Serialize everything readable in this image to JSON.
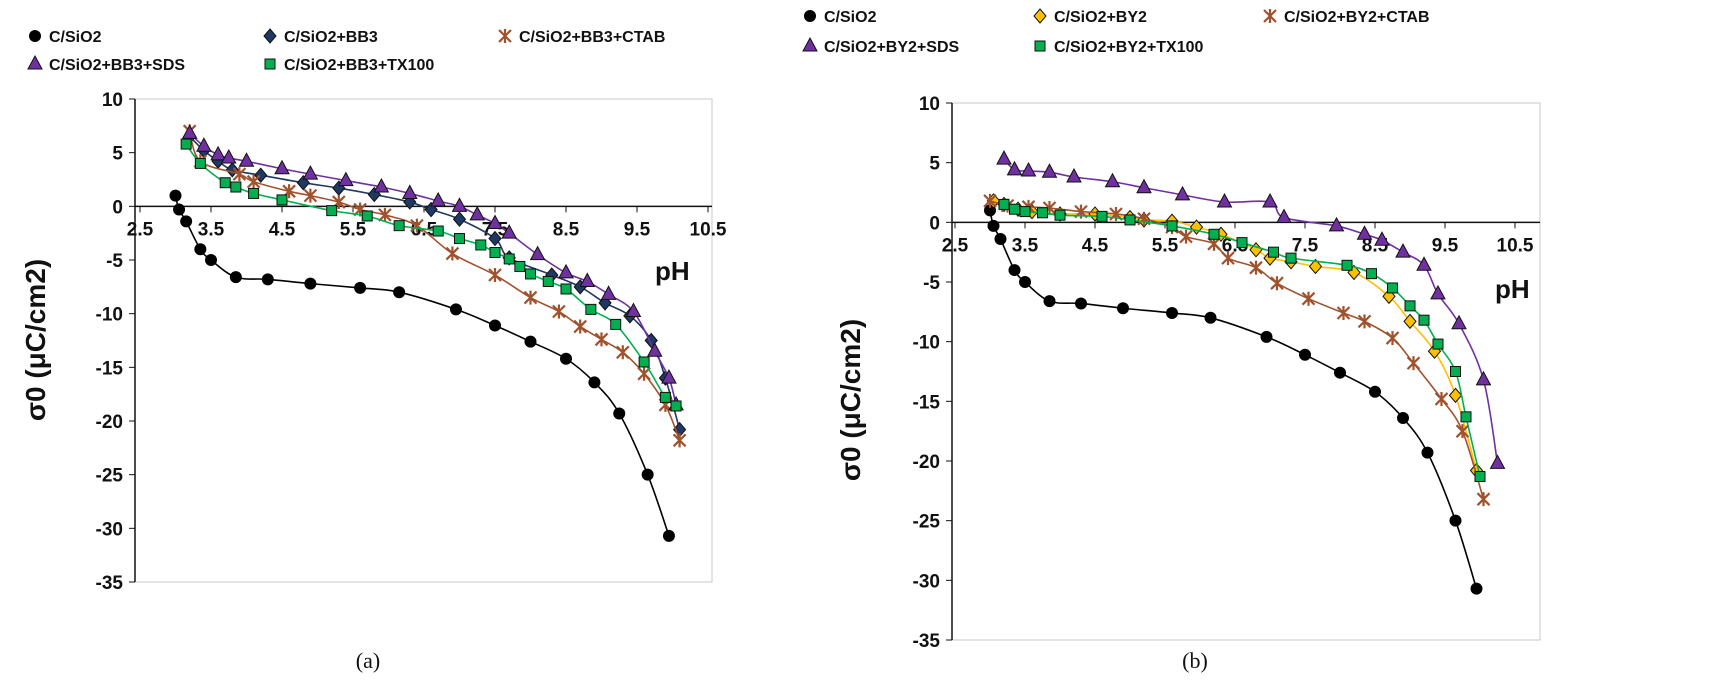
{
  "colors": {
    "C/SiO2": "#000000",
    "BB3": "#1f3864",
    "CTAB": "#a0522d",
    "SDS": "#7030a0",
    "TX100": "#00b050",
    "BY2": "#ffc000"
  },
  "chart_data": [
    {
      "type": "line",
      "panel_caption": "(a)",
      "xlabel": "pH",
      "ylabel": "σ0 (μC/cm2)",
      "xlim": [
        2.5,
        10.5
      ],
      "ylim": [
        -35,
        10
      ],
      "xticks": [
        "2.5",
        "3.5",
        "4.5",
        "5.5",
        "6.5",
        "7.5",
        "8.5",
        "9.5",
        "10.5"
      ],
      "yticks": [
        "10",
        "5",
        "0",
        "-5",
        "-10",
        "-15",
        "-20",
        "-25",
        "-30",
        "-35"
      ],
      "grid": false,
      "legend": "top",
      "series": [
        {
          "name": "C/SiO2",
          "marker": "circle",
          "color": "#000000",
          "x": [
            3.0,
            3.05,
            3.15,
            3.35,
            3.5,
            3.85,
            4.3,
            4.9,
            5.6,
            6.15,
            6.95,
            7.5,
            8.0,
            8.5,
            8.9,
            9.25,
            9.65,
            9.95
          ],
          "y": [
            1,
            -0.3,
            -1.4,
            -4,
            -5,
            -6.6,
            -6.8,
            -7.2,
            -7.6,
            -8,
            -9.6,
            -11.1,
            -12.6,
            -14.2,
            -16.4,
            -19.3,
            -25,
            -30.7
          ]
        },
        {
          "name": "C/SiO2+BB3",
          "marker": "diamond",
          "color": "#1f3864",
          "x": [
            3.2,
            3.4,
            3.6,
            3.8,
            4.2,
            4.8,
            5.3,
            5.8,
            6.3,
            6.6,
            7.0,
            7.5,
            7.7,
            8.3,
            8.7,
            9.05,
            9.4,
            9.7,
            9.9,
            10.1
          ],
          "y": [
            6.5,
            5.2,
            4.2,
            3.4,
            2.9,
            2.2,
            1.7,
            1.1,
            0.4,
            -0.3,
            -1.2,
            -3,
            -4.8,
            -6.4,
            -7.5,
            -9,
            -10.2,
            -12.5,
            -16,
            -20.8
          ]
        },
        {
          "name": "C/SiO2+BB3+CTAB",
          "marker": "asterisk",
          "color": "#a0522d",
          "x": [
            3.2,
            3.35,
            3.9,
            4.1,
            4.6,
            4.9,
            5.3,
            5.6,
            5.95,
            6.4,
            6.9,
            7.5,
            8.0,
            8.4,
            8.7,
            9.0,
            9.3,
            9.6,
            9.9,
            10.1
          ],
          "y": [
            7,
            4.2,
            3,
            2.3,
            1.4,
            1,
            0.4,
            -0.3,
            -0.8,
            -1.8,
            -4.4,
            -6.4,
            -8.5,
            -9.8,
            -11.2,
            -12.4,
            -13.6,
            -15.6,
            -18.5,
            -21.8
          ]
        },
        {
          "name": "C/SiO2+BB3+SDS",
          "marker": "triangle",
          "color": "#7030a0",
          "x": [
            3.2,
            3.4,
            3.6,
            3.75,
            4.0,
            4.5,
            4.9,
            5.4,
            5.9,
            6.3,
            6.7,
            7.0,
            7.25,
            7.5,
            7.7,
            8.1,
            8.5,
            8.8,
            9.1,
            9.45,
            9.75,
            9.95,
            10.05
          ],
          "y": [
            6.8,
            5.6,
            4.8,
            4.5,
            4.2,
            3.5,
            3.0,
            2.4,
            1.8,
            1.2,
            0.5,
            0,
            -0.8,
            -1.6,
            -2.5,
            -4.5,
            -6.2,
            -7,
            -8.2,
            -9.8,
            -13.5,
            -16,
            -18.5
          ]
        },
        {
          "name": "C/SiO2+BB3+TX100",
          "marker": "square",
          "color": "#00b050",
          "x": [
            3.15,
            3.35,
            3.7,
            3.85,
            4.1,
            4.5,
            5.2,
            5.7,
            6.15,
            6.7,
            7.0,
            7.3,
            7.5,
            7.7,
            7.85,
            8.0,
            8.25,
            8.5,
            8.85,
            9.2,
            9.6,
            9.9,
            10.05
          ],
          "y": [
            5.8,
            4,
            2.2,
            1.8,
            1.2,
            0.6,
            -0.4,
            -0.9,
            -1.8,
            -2.3,
            -3,
            -3.6,
            -4.3,
            -4.9,
            -5.6,
            -6.3,
            -7,
            -7.7,
            -9.6,
            -11,
            -14.5,
            -17.8,
            -18.6
          ]
        }
      ]
    },
    {
      "type": "line",
      "panel_caption": "(b)",
      "xlabel": "pH",
      "ylabel": "σ0 (μC/cm2)",
      "xlim": [
        2.5,
        10.5
      ],
      "ylim": [
        -35,
        10
      ],
      "xticks": [
        "2.5",
        "3.5",
        "4.5",
        "5.5",
        "6.5",
        "7.5",
        "8.5",
        "9.5",
        "10.5"
      ],
      "yticks": [
        "10",
        "5",
        "0",
        "-5",
        "-10",
        "-15",
        "-20",
        "-25",
        "-30",
        "-35"
      ],
      "grid": false,
      "legend": "top",
      "series": [
        {
          "name": "C/SiO2",
          "marker": "circle",
          "color": "#000000",
          "x": [
            3.0,
            3.05,
            3.15,
            3.35,
            3.5,
            3.85,
            4.3,
            4.9,
            5.6,
            6.15,
            6.95,
            7.5,
            8.0,
            8.5,
            8.9,
            9.25,
            9.65,
            9.95
          ],
          "y": [
            1,
            -0.3,
            -1.4,
            -4,
            -5,
            -6.6,
            -6.8,
            -7.2,
            -7.6,
            -8,
            -9.6,
            -11.1,
            -12.6,
            -14.2,
            -16.4,
            -19.3,
            -25,
            -30.7
          ]
        },
        {
          "name": "C/SiO2+BY2",
          "marker": "diamond",
          "color": "#ffc000",
          "x": [
            3.05,
            3.2,
            3.4,
            3.6,
            4.0,
            4.5,
            5.0,
            5.2,
            5.6,
            5.95,
            6.3,
            6.8,
            7.0,
            7.3,
            7.65,
            8.2,
            8.7,
            9.0,
            9.35,
            9.65,
            9.95
          ],
          "y": [
            1.8,
            1.5,
            1.1,
            0.9,
            0.7,
            0.7,
            0.4,
            0.2,
            0.1,
            -0.4,
            -1,
            -2.3,
            -3,
            -3.3,
            -3.7,
            -4.2,
            -6.2,
            -8.3,
            -10.8,
            -14.5,
            -20.8
          ]
        },
        {
          "name": "C/SiO2+BY2+CTAB",
          "marker": "asterisk",
          "color": "#a0522d",
          "x": [
            3.0,
            3.25,
            3.55,
            3.85,
            4.3,
            4.8,
            5.2,
            5.6,
            5.8,
            6.2,
            6.4,
            6.8,
            7.1,
            7.55,
            8.05,
            8.35,
            8.75,
            9.05,
            9.45,
            9.75,
            10.05
          ],
          "y": [
            1.8,
            1.4,
            1.3,
            1.2,
            0.9,
            0.7,
            0.3,
            -0.4,
            -1.2,
            -1.8,
            -3,
            -3.8,
            -5.1,
            -6.4,
            -7.6,
            -8.3,
            -9.7,
            -11.8,
            -14.8,
            -17.5,
            -23.2
          ]
        },
        {
          "name": "C/SiO2+BY2+SDS",
          "marker": "triangle",
          "color": "#7030a0",
          "x": [
            3.2,
            3.35,
            3.55,
            3.85,
            4.2,
            4.75,
            5.2,
            5.75,
            6.35,
            7.0,
            7.2,
            7.95,
            8.35,
            8.6,
            8.9,
            9.2,
            9.4,
            9.7,
            10.05,
            10.25
          ],
          "y": [
            5.3,
            4.4,
            4.3,
            4.2,
            3.8,
            3.4,
            2.9,
            2.3,
            1.7,
            1.7,
            0.4,
            -0.3,
            -1,
            -1.5,
            -2.5,
            -3.6,
            -6,
            -8.5,
            -13.2,
            -20.2
          ]
        },
        {
          "name": "C/SiO2+BY2+TX100",
          "marker": "square",
          "color": "#00b050",
          "x": [
            3.2,
            3.35,
            3.5,
            3.75,
            4.0,
            4.6,
            5.0,
            5.6,
            6.2,
            6.6,
            7.05,
            7.3,
            8.1,
            8.45,
            8.75,
            9.0,
            9.2,
            9.4,
            9.65,
            9.8,
            10.0
          ],
          "y": [
            1.5,
            1.1,
            0.9,
            0.8,
            0.6,
            0.5,
            0.2,
            -0.3,
            -1,
            -1.7,
            -2.5,
            -3,
            -3.6,
            -4.3,
            -5.5,
            -7,
            -8.2,
            -10.2,
            -12.5,
            -16.3,
            -21.3
          ]
        }
      ]
    }
  ]
}
